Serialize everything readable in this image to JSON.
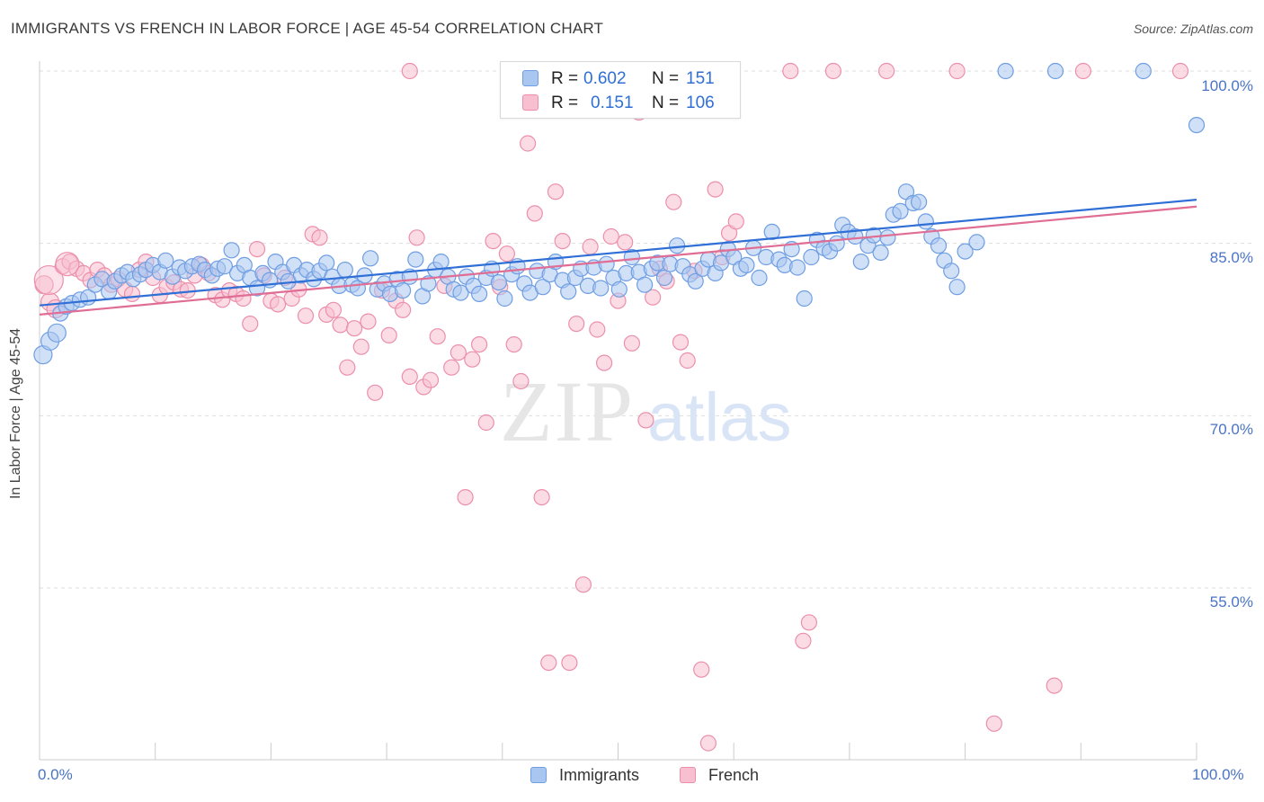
{
  "title": "IMMIGRANTS VS FRENCH IN LABOR FORCE | AGE 45-54 CORRELATION CHART",
  "source": "Source: ZipAtlas.com",
  "watermark": {
    "part1": "ZIP",
    "part2": "atlas"
  },
  "colors": {
    "immigrants_fill": "#a9c6f0",
    "immigrants_stroke": "#6f9ee3",
    "immigrants_line": "#2f6fd6",
    "french_fill": "#f8bfd0",
    "french_stroke": "#ec8fab",
    "french_line": "#e06d94",
    "axis_text": "#4a74c4",
    "grid": "#dddddd"
  },
  "legend": {
    "immigrants": {
      "r_label": "R =",
      "r_value": "0.602",
      "n_label": "N =",
      "n_value": "151"
    },
    "french": {
      "r_label": "R =",
      "r_value": "0.151",
      "n_label": "N =",
      "n_value": "106"
    }
  },
  "chart_data": {
    "type": "scatter",
    "title": "IMMIGRANTS VS FRENCH IN LABOR FORCE | AGE 45-54 CORRELATION CHART",
    "xlabel": "",
    "ylabel": "In Labor Force | Age 45-54",
    "xlim": [
      0,
      100
    ],
    "ylim": [
      40,
      101.5
    ],
    "x_ticks": [
      "0.0%",
      "100.0%"
    ],
    "y_ticks": [
      "55.0%",
      "70.0%",
      "85.0%",
      "100.0%"
    ],
    "y_tick_values": [
      55,
      70,
      85,
      100
    ],
    "grid": true,
    "legend_position": "top-center",
    "series": [
      {
        "name": "Immigrants",
        "r": 0.602,
        "n": 151,
        "trend": [
          [
            0,
            79.6
          ],
          [
            100,
            88.8
          ]
        ],
        "points": [
          [
            0.3,
            75.3
          ],
          [
            0.9,
            76.5
          ],
          [
            1.5,
            77.2
          ],
          [
            1.8,
            78.9
          ],
          [
            2.3,
            79.5
          ],
          [
            2.8,
            79.8
          ],
          [
            3.5,
            80.1
          ],
          [
            4.2,
            80.3
          ],
          [
            4.8,
            81.4
          ],
          [
            5.4,
            81.9
          ],
          [
            6.0,
            80.8
          ],
          [
            6.5,
            81.7
          ],
          [
            7.1,
            82.2
          ],
          [
            7.6,
            82.5
          ],
          [
            8.1,
            81.9
          ],
          [
            8.7,
            82.3
          ],
          [
            9.2,
            82.7
          ],
          [
            9.8,
            83.1
          ],
          [
            10.4,
            82.5
          ],
          [
            10.9,
            83.5
          ],
          [
            11.5,
            82.1
          ],
          [
            12.1,
            82.9
          ],
          [
            12.6,
            82.6
          ],
          [
            13.2,
            83.0
          ],
          [
            13.8,
            83.2
          ],
          [
            14.3,
            82.7
          ],
          [
            14.9,
            82.2
          ],
          [
            15.4,
            82.8
          ],
          [
            16.0,
            83.0
          ],
          [
            16.6,
            84.4
          ],
          [
            17.1,
            82.4
          ],
          [
            17.7,
            83.1
          ],
          [
            18.2,
            82.0
          ],
          [
            18.8,
            81.1
          ],
          [
            19.3,
            82.4
          ],
          [
            19.9,
            81.8
          ],
          [
            20.4,
            83.4
          ],
          [
            21.0,
            82.5
          ],
          [
            21.5,
            81.7
          ],
          [
            22.0,
            83.1
          ],
          [
            22.6,
            82.2
          ],
          [
            23.1,
            82.7
          ],
          [
            23.7,
            81.9
          ],
          [
            24.2,
            82.6
          ],
          [
            24.8,
            83.3
          ],
          [
            25.3,
            82.1
          ],
          [
            25.9,
            81.3
          ],
          [
            26.4,
            82.7
          ],
          [
            27.0,
            81.4
          ],
          [
            27.5,
            81.1
          ],
          [
            28.1,
            82.2
          ],
          [
            28.6,
            83.7
          ],
          [
            29.2,
            81.0
          ],
          [
            29.8,
            81.5
          ],
          [
            30.3,
            80.6
          ],
          [
            30.9,
            81.9
          ],
          [
            31.4,
            80.9
          ],
          [
            32.0,
            82.1
          ],
          [
            32.5,
            83.6
          ],
          [
            33.1,
            80.4
          ],
          [
            33.6,
            81.5
          ],
          [
            34.2,
            82.7
          ],
          [
            34.7,
            83.4
          ],
          [
            35.3,
            82.1
          ],
          [
            35.8,
            81.0
          ],
          [
            36.4,
            80.7
          ],
          [
            36.9,
            82.1
          ],
          [
            37.5,
            81.3
          ],
          [
            38.0,
            80.6
          ],
          [
            38.6,
            82.0
          ],
          [
            39.1,
            82.8
          ],
          [
            39.7,
            81.6
          ],
          [
            40.2,
            80.2
          ],
          [
            40.8,
            82.3
          ],
          [
            41.3,
            83.0
          ],
          [
            41.9,
            81.5
          ],
          [
            42.4,
            80.7
          ],
          [
            43.0,
            82.6
          ],
          [
            43.5,
            81.2
          ],
          [
            44.1,
            82.3
          ],
          [
            44.6,
            83.4
          ],
          [
            45.2,
            81.8
          ],
          [
            45.7,
            80.8
          ],
          [
            46.3,
            82.0
          ],
          [
            46.8,
            82.8
          ],
          [
            47.4,
            81.3
          ],
          [
            47.9,
            82.9
          ],
          [
            48.5,
            81.1
          ],
          [
            49.0,
            83.2
          ],
          [
            49.6,
            82.0
          ],
          [
            50.1,
            81.0
          ],
          [
            50.7,
            82.4
          ],
          [
            51.2,
            83.8
          ],
          [
            51.8,
            82.5
          ],
          [
            52.3,
            81.4
          ],
          [
            52.9,
            82.8
          ],
          [
            53.4,
            83.3
          ],
          [
            54.0,
            82.0
          ],
          [
            54.5,
            83.2
          ],
          [
            55.1,
            84.8
          ],
          [
            55.6,
            83.0
          ],
          [
            56.2,
            82.3
          ],
          [
            56.7,
            81.7
          ],
          [
            57.3,
            82.8
          ],
          [
            57.8,
            83.6
          ],
          [
            58.4,
            82.4
          ],
          [
            58.9,
            83.3
          ],
          [
            59.5,
            84.5
          ],
          [
            60.0,
            83.8
          ],
          [
            60.6,
            82.8
          ],
          [
            61.1,
            83.1
          ],
          [
            61.7,
            84.6
          ],
          [
            62.2,
            82.0
          ],
          [
            62.8,
            83.8
          ],
          [
            63.3,
            86.0
          ],
          [
            63.9,
            83.6
          ],
          [
            64.4,
            83.1
          ],
          [
            65.0,
            84.5
          ],
          [
            65.5,
            82.9
          ],
          [
            66.1,
            80.2
          ],
          [
            66.7,
            83.8
          ],
          [
            67.2,
            85.3
          ],
          [
            67.8,
            84.6
          ],
          [
            68.3,
            84.3
          ],
          [
            68.9,
            85.0
          ],
          [
            69.4,
            86.6
          ],
          [
            69.9,
            86.0
          ],
          [
            70.5,
            85.6
          ],
          [
            71.0,
            83.4
          ],
          [
            71.6,
            84.8
          ],
          [
            72.1,
            85.7
          ],
          [
            72.7,
            84.2
          ],
          [
            73.3,
            85.5
          ],
          [
            73.8,
            87.5
          ],
          [
            74.4,
            87.8
          ],
          [
            74.9,
            89.5
          ],
          [
            75.5,
            88.5
          ],
          [
            76.0,
            88.6
          ],
          [
            76.6,
            86.9
          ],
          [
            77.1,
            85.6
          ],
          [
            77.7,
            84.8
          ],
          [
            78.2,
            83.5
          ],
          [
            78.8,
            82.6
          ],
          [
            79.3,
            81.2
          ],
          [
            80.0,
            84.3
          ],
          [
            81.0,
            85.1
          ],
          [
            100.0,
            95.3
          ],
          [
            83.5,
            100
          ],
          [
            87.8,
            100
          ],
          [
            95.4,
            100
          ]
        ]
      },
      {
        "name": "French",
        "r": 0.151,
        "n": 106,
        "trend": [
          [
            0,
            78.8
          ],
          [
            100,
            88.2
          ]
        ],
        "points": [
          [
            0.4,
            81.4
          ],
          [
            0.9,
            79.9
          ],
          [
            1.4,
            79.3
          ],
          [
            2.0,
            83.0
          ],
          [
            2.6,
            83.4
          ],
          [
            3.2,
            82.8
          ],
          [
            3.8,
            82.4
          ],
          [
            4.4,
            81.8
          ],
          [
            5.0,
            82.7
          ],
          [
            5.6,
            82.2
          ],
          [
            6.2,
            81.4
          ],
          [
            6.8,
            81.9
          ],
          [
            7.4,
            81.0
          ],
          [
            8.0,
            80.6
          ],
          [
            8.6,
            82.7
          ],
          [
            9.2,
            83.4
          ],
          [
            9.8,
            82.0
          ],
          [
            10.4,
            80.5
          ],
          [
            11.0,
            81.2
          ],
          [
            11.6,
            81.6
          ],
          [
            12.2,
            81.0
          ],
          [
            12.8,
            80.9
          ],
          [
            13.4,
            82.2
          ],
          [
            14.0,
            83.1
          ],
          [
            14.6,
            82.4
          ],
          [
            15.2,
            80.5
          ],
          [
            15.8,
            80.1
          ],
          [
            16.4,
            80.9
          ],
          [
            17.0,
            80.6
          ],
          [
            17.6,
            80.2
          ],
          [
            18.2,
            78.0
          ],
          [
            18.8,
            84.5
          ],
          [
            19.4,
            82.2
          ],
          [
            20.0,
            80.0
          ],
          [
            20.6,
            79.7
          ],
          [
            21.2,
            82.0
          ],
          [
            21.8,
            80.2
          ],
          [
            22.4,
            81.0
          ],
          [
            23.0,
            78.7
          ],
          [
            23.6,
            85.8
          ],
          [
            24.2,
            85.5
          ],
          [
            24.8,
            78.8
          ],
          [
            25.4,
            79.2
          ],
          [
            26.0,
            77.9
          ],
          [
            26.6,
            74.2
          ],
          [
            27.2,
            77.6
          ],
          [
            27.8,
            76.0
          ],
          [
            28.4,
            78.2
          ],
          [
            29.0,
            72.0
          ],
          [
            29.6,
            80.9
          ],
          [
            30.2,
            77.0
          ],
          [
            30.8,
            80.0
          ],
          [
            31.4,
            79.2
          ],
          [
            32.0,
            73.4
          ],
          [
            32.6,
            85.5
          ],
          [
            33.2,
            72.5
          ],
          [
            33.8,
            73.1
          ],
          [
            34.4,
            76.9
          ],
          [
            35.0,
            81.3
          ],
          [
            35.6,
            74.2
          ],
          [
            36.2,
            75.5
          ],
          [
            36.8,
            62.9
          ],
          [
            37.4,
            74.9
          ],
          [
            38.0,
            76.2
          ],
          [
            38.6,
            69.4
          ],
          [
            39.2,
            85.2
          ],
          [
            39.8,
            81.2
          ],
          [
            40.4,
            84.1
          ],
          [
            41.0,
            76.2
          ],
          [
            41.6,
            73.0
          ],
          [
            42.2,
            93.7
          ],
          [
            42.8,
            87.6
          ],
          [
            43.4,
            62.9
          ],
          [
            44.0,
            48.5
          ],
          [
            44.6,
            89.5
          ],
          [
            45.2,
            85.2
          ],
          [
            45.8,
            48.5
          ],
          [
            46.4,
            78.0
          ],
          [
            47.0,
            55.3
          ],
          [
            47.6,
            84.7
          ],
          [
            48.2,
            77.5
          ],
          [
            48.8,
            74.6
          ],
          [
            49.4,
            85.6
          ],
          [
            50.0,
            80.0
          ],
          [
            50.6,
            85.1
          ],
          [
            51.2,
            76.3
          ],
          [
            51.8,
            96.4
          ],
          [
            52.4,
            69.6
          ],
          [
            53.0,
            80.3
          ],
          [
            53.6,
            82.8
          ],
          [
            54.2,
            81.7
          ],
          [
            54.8,
            88.6
          ],
          [
            55.4,
            76.4
          ],
          [
            56.0,
            74.8
          ],
          [
            56.6,
            82.6
          ],
          [
            57.2,
            47.9
          ],
          [
            57.8,
            41.5
          ],
          [
            58.4,
            89.7
          ],
          [
            59.0,
            83.8
          ],
          [
            59.6,
            85.9
          ],
          [
            60.2,
            86.9
          ],
          [
            66.0,
            50.4
          ],
          [
            66.5,
            52.0
          ],
          [
            82.5,
            43.2
          ],
          [
            87.7,
            46.5
          ],
          [
            32.0,
            100
          ],
          [
            41.5,
            100
          ],
          [
            45.7,
            100
          ],
          [
            49.8,
            100
          ],
          [
            54.0,
            100
          ],
          [
            56.1,
            100
          ],
          [
            64.9,
            100
          ],
          [
            68.6,
            100
          ],
          [
            73.2,
            100
          ],
          [
            79.3,
            100
          ],
          [
            90.2,
            100
          ],
          [
            98.6,
            100
          ]
        ]
      }
    ]
  },
  "bottom_legend": {
    "immigrants_label": "Immigrants",
    "french_label": "French"
  }
}
